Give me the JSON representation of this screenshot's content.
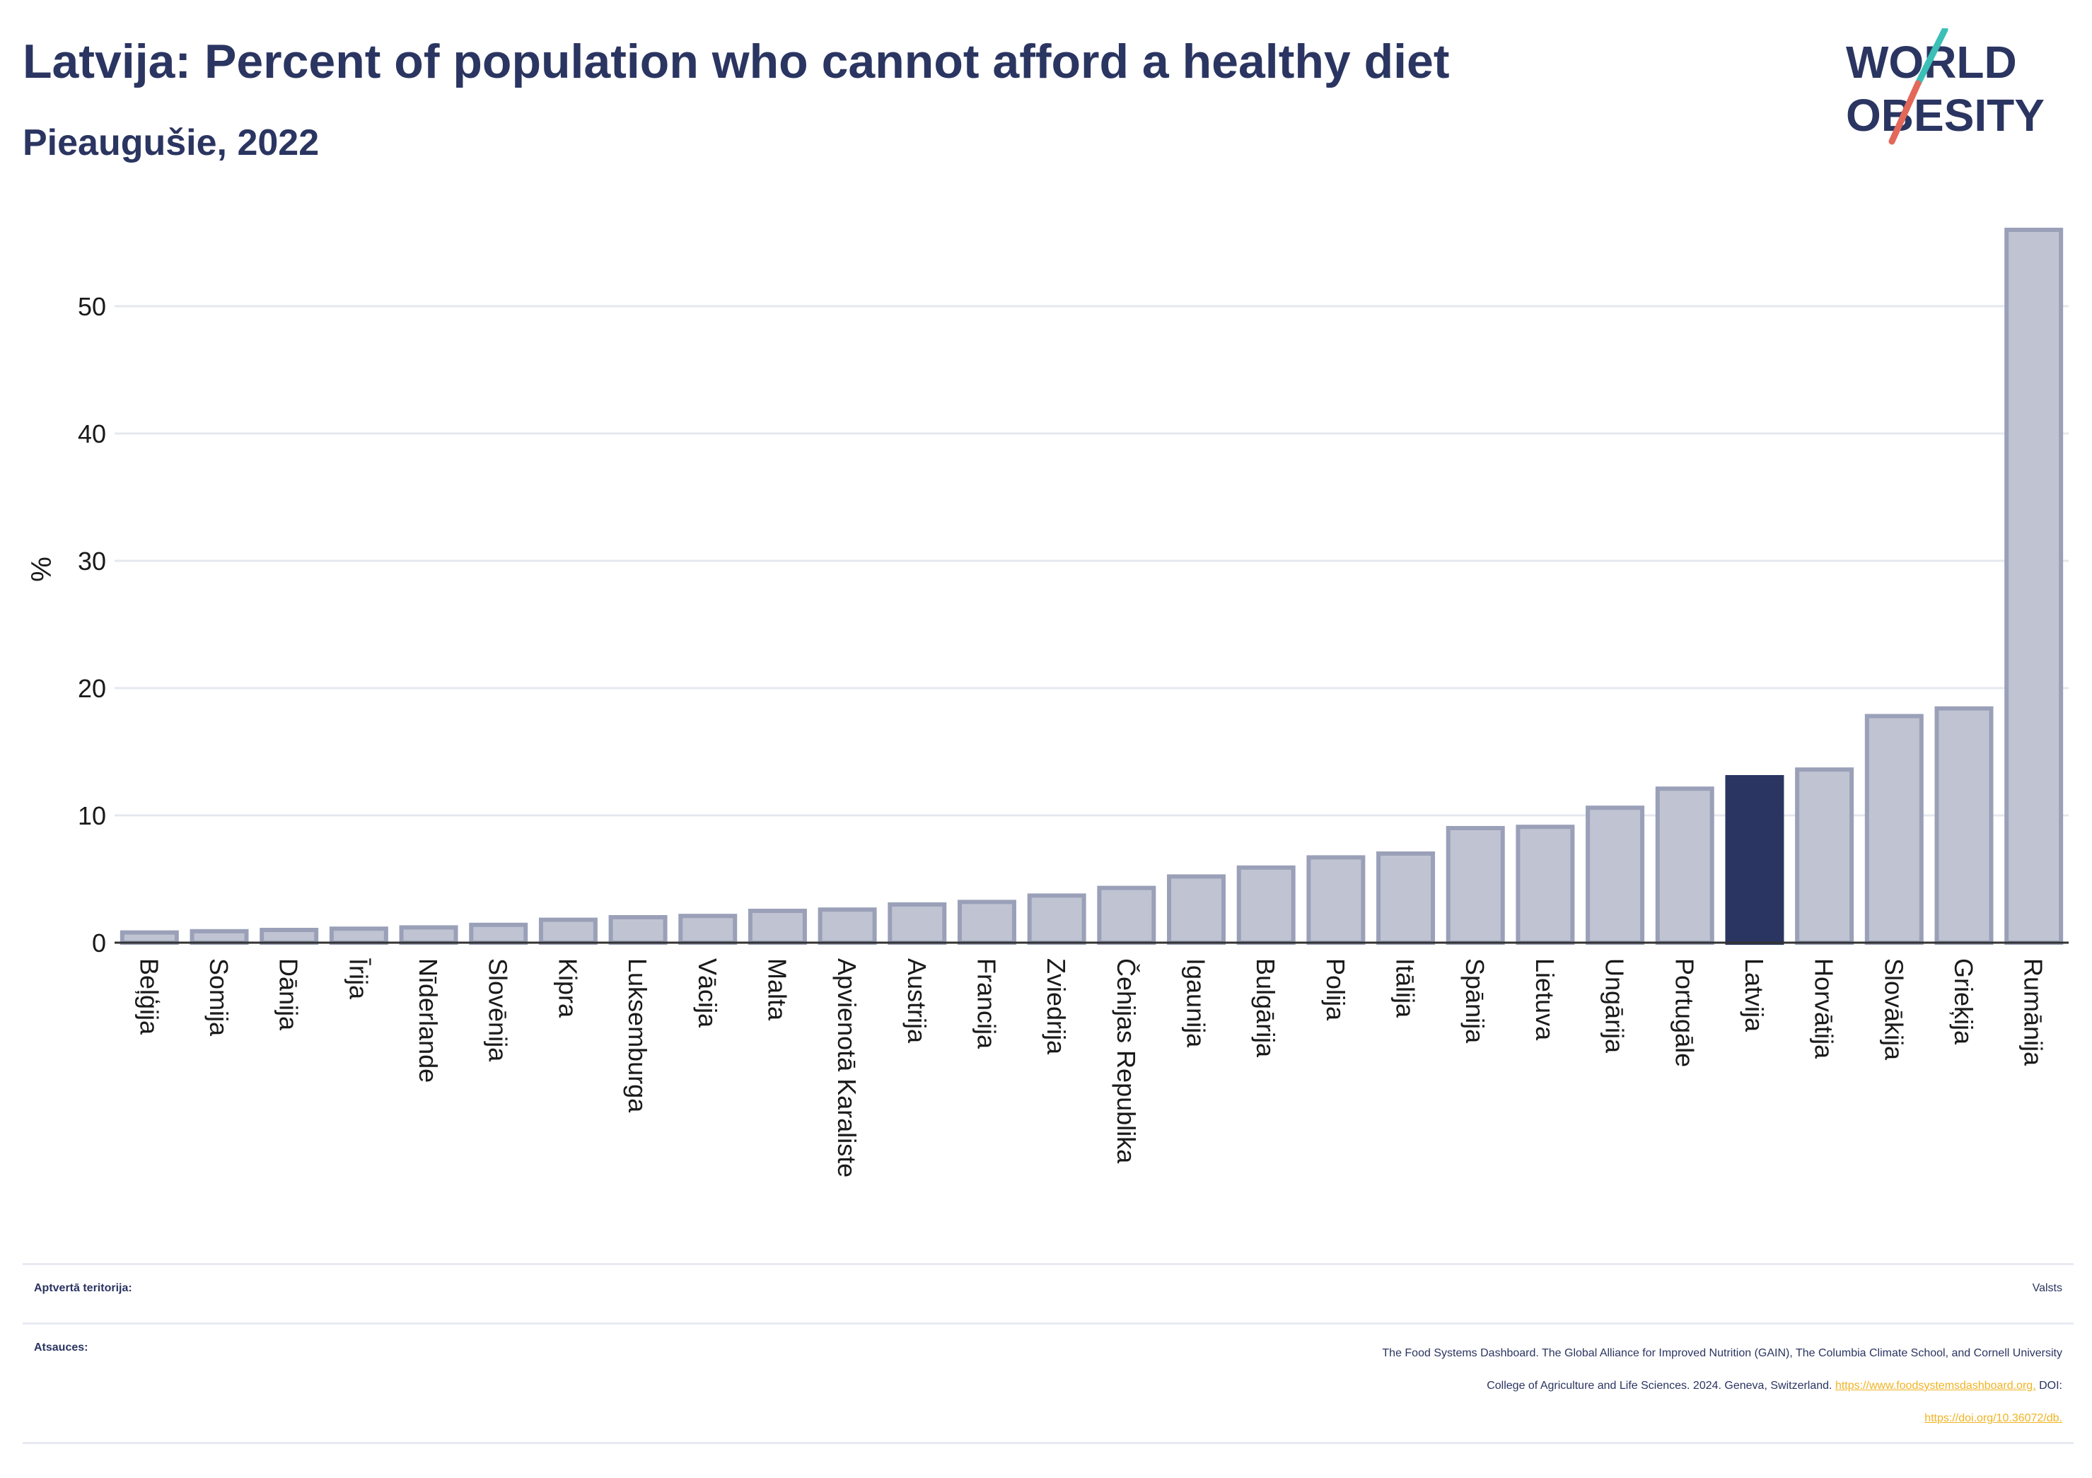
{
  "title": "Latvija: Percent of population who cannot afford a healthy diet",
  "subtitle": "Pieaugušie, 2022",
  "logo": {
    "line1": "WORLD",
    "line2": "OBESITY"
  },
  "colors": {
    "bar": "#c0c4d2",
    "bar_border": "#9aa0b8",
    "highlight": "#2b3561",
    "grid": "#e6e8ef",
    "accent_teal": "#3bbfb7",
    "accent_red": "#e3685a"
  },
  "chart_data": {
    "type": "bar",
    "ylabel": "%",
    "xlabel": "",
    "ylim": [
      0,
      56
    ],
    "yticks": [
      0,
      10,
      20,
      30,
      40,
      50
    ],
    "grid": true,
    "highlight": "Latvija",
    "categories": [
      "Beļģija",
      "Somija",
      "Dānija",
      "Īrija",
      "Nīderlande",
      "Slovēnija",
      "Kipra",
      "Luksemburga",
      "Vācija",
      "Malta",
      "Apvienotā Karaliste",
      "Austrija",
      "Francija",
      "Zviedrija",
      "Čehijas Republika",
      "Igaunija",
      "Bulgārija",
      "Polija",
      "Itālija",
      "Spānija",
      "Lietuva",
      "Ungārija",
      "Portugāle",
      "Latvija",
      "Horvātija",
      "Slovākija",
      "Grieķija",
      "Rumānija"
    ],
    "values": [
      0.8,
      0.9,
      1.0,
      1.1,
      1.2,
      1.4,
      1.8,
      2.0,
      2.1,
      2.5,
      2.6,
      3.0,
      3.2,
      3.7,
      4.3,
      5.2,
      5.9,
      6.7,
      7.0,
      9.0,
      9.1,
      10.6,
      12.1,
      13.0,
      13.6,
      17.8,
      18.4,
      56.0
    ]
  },
  "footer": {
    "coverage_label": "Aptvertā teritorija:",
    "coverage_value": "Valsts",
    "sources_label": "Atsauces:",
    "sources_text_1": "The Food Systems Dashboard. The Global Alliance for Improved Nutrition (GAIN), The Columbia Climate School, and Cornell University",
    "sources_text_2": "College of Agriculture and Life Sciences. 2024. Geneva, Switzerland.",
    "sources_link_1": "https://www.foodsystemsdashboard.org.",
    "sources_text_3": "DOI:",
    "sources_link_2": "https://doi.org/10.36072/db."
  }
}
